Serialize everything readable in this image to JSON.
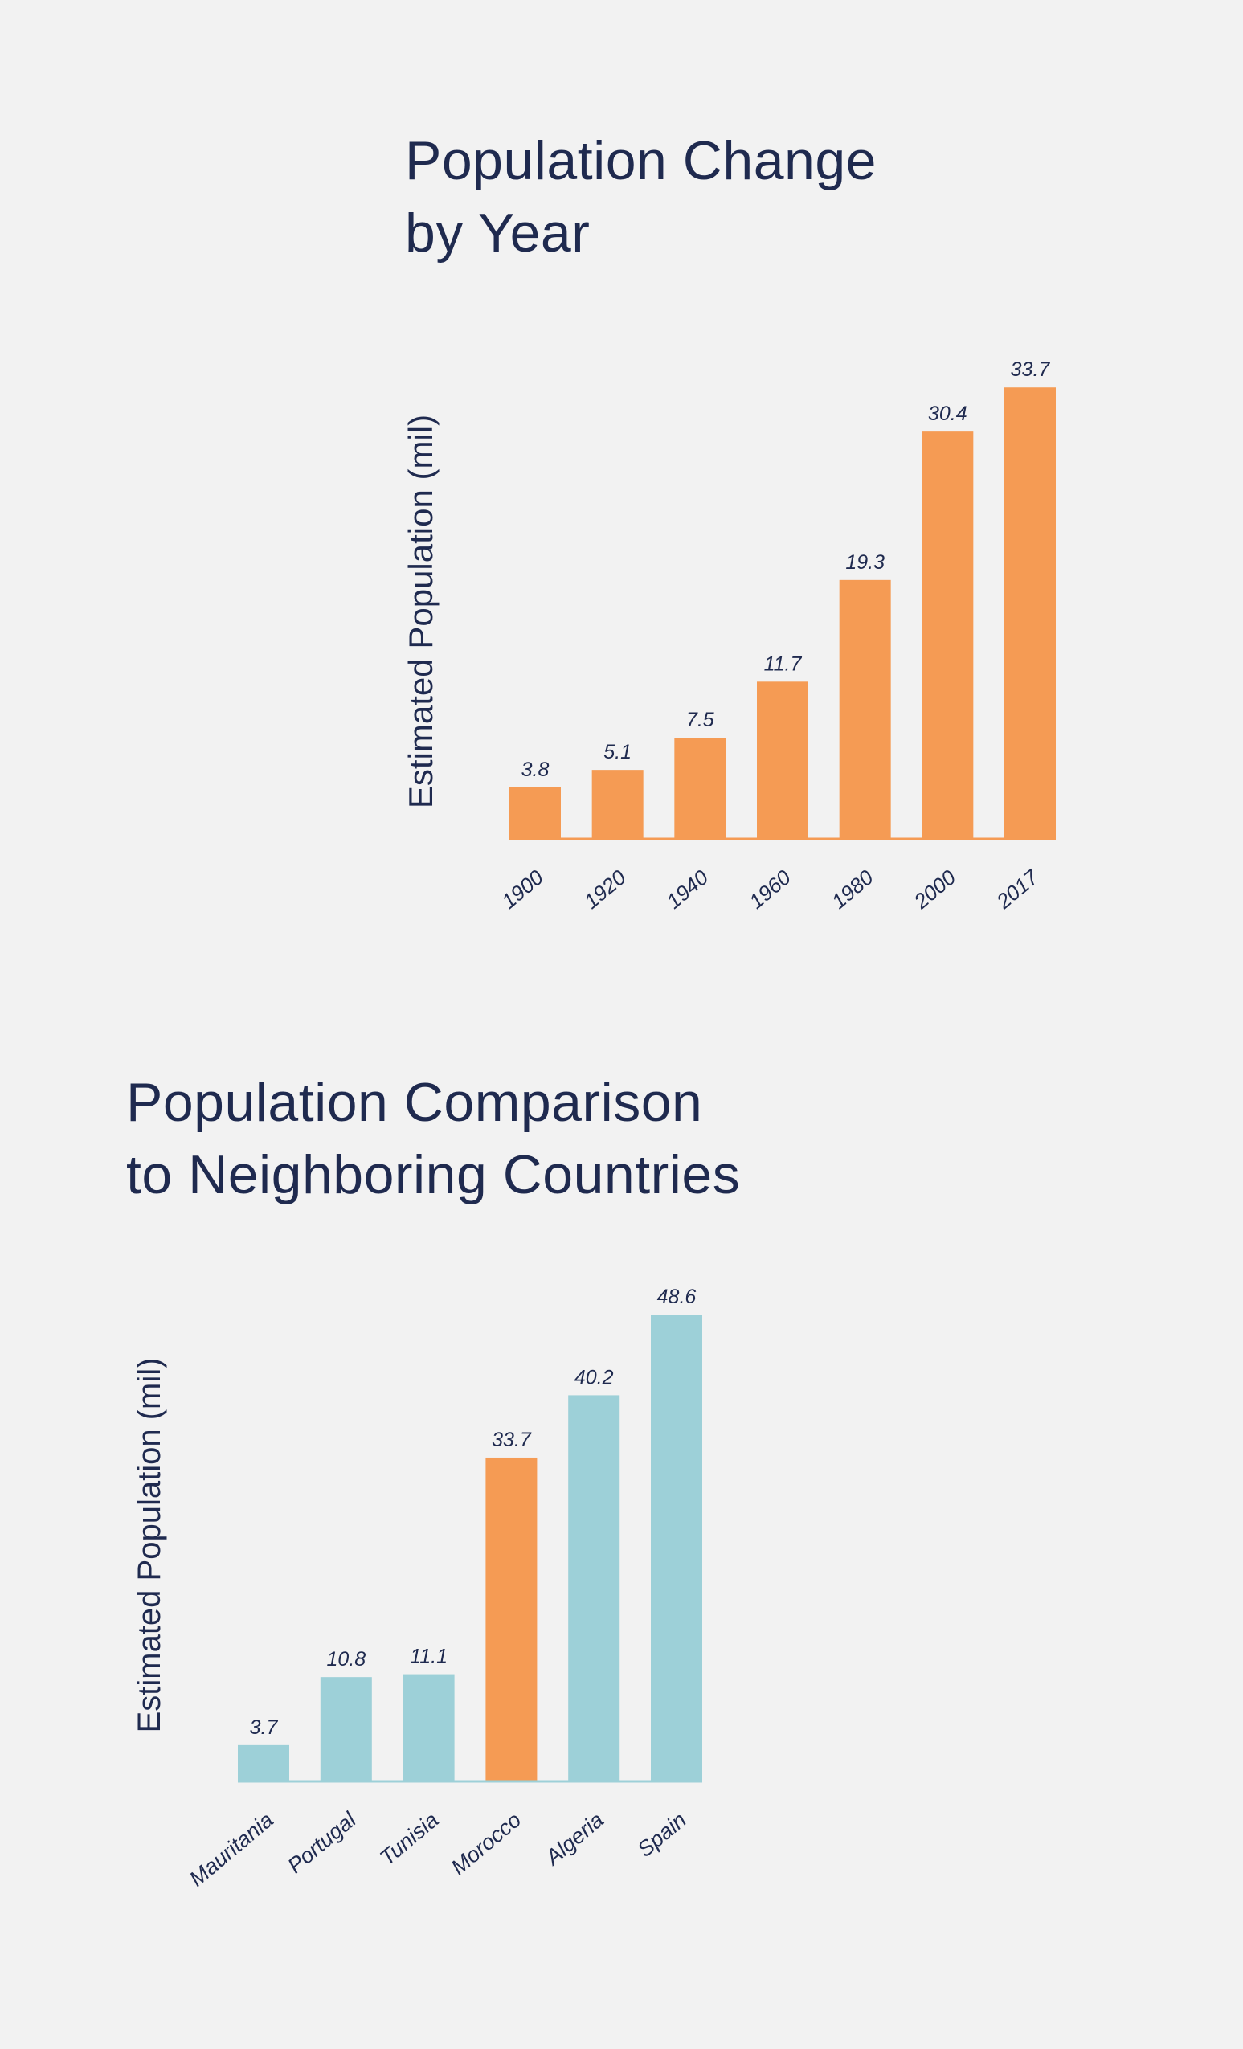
{
  "chart_data": [
    {
      "type": "bar",
      "title_lines": [
        "Population Change",
        "by Year"
      ],
      "ylabel": "Estimated Population (mil)",
      "categories": [
        "1900",
        "1920",
        "1940",
        "1960",
        "1980",
        "2000",
        "2017"
      ],
      "values": [
        3.8,
        5.1,
        7.5,
        11.7,
        19.3,
        30.4,
        33.7
      ],
      "bar_colors": [
        "#f59b54",
        "#f59b54",
        "#f59b54",
        "#f59b54",
        "#f59b54",
        "#f59b54",
        "#f59b54"
      ],
      "axis_color": "#f59b54",
      "grid": false,
      "legend": "none"
    },
    {
      "type": "bar",
      "title_lines": [
        "Population Comparison",
        "to Neighboring Countries"
      ],
      "ylabel": "Estimated Population (mil)",
      "categories": [
        "Mauritania",
        "Portugal",
        "Tunisia",
        "Morocco",
        "Algeria",
        "Spain"
      ],
      "values": [
        3.7,
        10.8,
        11.1,
        33.7,
        40.2,
        48.6
      ],
      "bar_colors": [
        "#9dd0d8",
        "#9dd0d8",
        "#9dd0d8",
        "#f59b54",
        "#9dd0d8",
        "#9dd0d8"
      ],
      "axis_color": "#9dd0d8",
      "grid": false,
      "legend": "none"
    }
  ]
}
